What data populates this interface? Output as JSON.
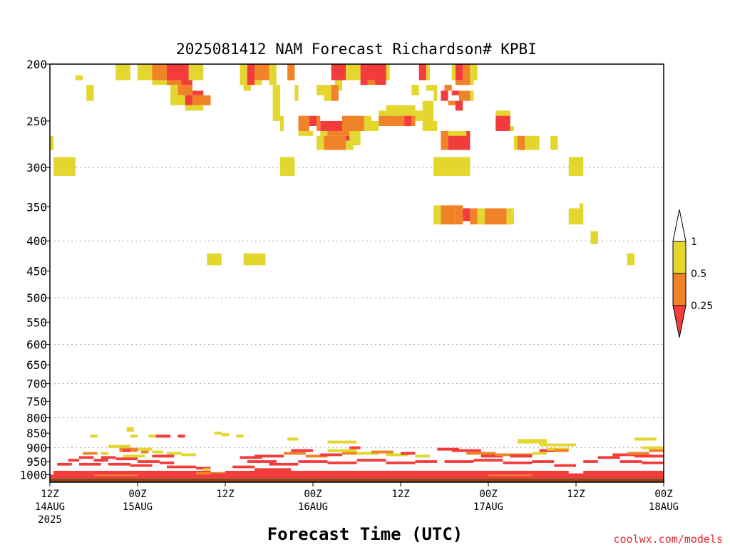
{
  "chart_data": {
    "type": "heatmap",
    "title": "2025081412 NAM Forecast Richardson# KPBI",
    "xlabel": "Forecast Time (UTC)",
    "credit": "coolwx.com/models",
    "x_unit": "forecast hours from 2025-08-14 12Z",
    "xlim": [
      0,
      84
    ],
    "ylim_hpa": [
      1030,
      200
    ],
    "y_scale": "log-pressure",
    "y_ticks": [
      200,
      250,
      300,
      350,
      400,
      450,
      500,
      550,
      600,
      650,
      700,
      750,
      800,
      850,
      900,
      950,
      1000
    ],
    "y_tick_labels": [
      "200",
      "250",
      "300",
      "350",
      "400",
      "450",
      "500",
      "550",
      "600",
      "650",
      "700",
      "750",
      "800",
      "850",
      "900",
      "950",
      "1000"
    ],
    "y_gridlines": [
      300,
      400,
      500,
      600,
      700,
      800,
      900
    ],
    "x_ticks": [
      {
        "hour": 0,
        "line1": "12Z",
        "line2": "14AUG",
        "line3": "2025"
      },
      {
        "hour": 12,
        "line1": "00Z",
        "line2": "15AUG",
        "line3": ""
      },
      {
        "hour": 24,
        "line1": "12Z",
        "line2": "",
        "line3": ""
      },
      {
        "hour": 36,
        "line1": "00Z",
        "line2": "16AUG",
        "line3": ""
      },
      {
        "hour": 48,
        "line1": "12Z",
        "line2": "",
        "line3": ""
      },
      {
        "hour": 60,
        "line1": "00Z",
        "line2": "17AUG",
        "line3": ""
      },
      {
        "hour": 72,
        "line1": "12Z",
        "line2": "",
        "line3": ""
      },
      {
        "hour": 84,
        "line1": "00Z",
        "line2": "18AUG",
        "line3": ""
      }
    ],
    "colorbar": {
      "levels": [
        "1",
        "0.5",
        "0.25"
      ],
      "colors": {
        "above_1": "#ffffff",
        "c05_1": "#e3d62e",
        "c025_05": "#f08228",
        "below_025": "#f23c3c"
      },
      "placement": "right"
    },
    "colors": {
      "yellow": "#e3d62e",
      "orange": "#f08228",
      "red": "#f23c3c",
      "ground": "#8b4513",
      "grid": "#aaaaaa"
    },
    "cells": [
      [
        "y",
        9,
        11,
        200,
        213
      ],
      [
        "y",
        12,
        14,
        200,
        213
      ],
      [
        "o",
        14,
        16,
        200,
        213
      ],
      [
        "r",
        16,
        19,
        200,
        213
      ],
      [
        "y",
        19,
        21,
        200,
        213
      ],
      [
        "y",
        26,
        27,
        200,
        213
      ],
      [
        "r",
        27,
        28,
        200,
        213
      ],
      [
        "o",
        28,
        30,
        200,
        213
      ],
      [
        "y",
        30,
        31,
        200,
        213
      ],
      [
        "o",
        32.5,
        33.5,
        200,
        213
      ],
      [
        "r",
        38.5,
        40.5,
        200,
        213
      ],
      [
        "y",
        40.5,
        42.5,
        200,
        213
      ],
      [
        "r",
        42.5,
        46,
        200,
        213
      ],
      [
        "y",
        46,
        46.5,
        200,
        213
      ],
      [
        "r",
        50.5,
        51.5,
        200,
        213
      ],
      [
        "y",
        51.5,
        52,
        200,
        213
      ],
      [
        "y",
        55,
        55.5,
        200,
        213
      ],
      [
        "r",
        55.5,
        56.5,
        200,
        213
      ],
      [
        "o",
        56.5,
        57.5,
        200,
        213
      ],
      [
        "y",
        57.5,
        58.5,
        200,
        213
      ],
      [
        "y",
        3.5,
        4.5,
        209,
        213
      ],
      [
        "y",
        14,
        16,
        213,
        217
      ],
      [
        "o",
        16,
        18,
        213,
        217
      ],
      [
        "r",
        18,
        19.5,
        213,
        217
      ],
      [
        "y",
        26,
        27,
        213,
        217
      ],
      [
        "r",
        27,
        28,
        213,
        217
      ],
      [
        "y",
        28,
        29,
        213,
        217
      ],
      [
        "y",
        30,
        31,
        213,
        217
      ],
      [
        "y",
        39,
        40,
        213,
        217
      ],
      [
        "r",
        42.5,
        43.5,
        213,
        217
      ],
      [
        "o",
        43.5,
        44.5,
        213,
        217
      ],
      [
        "r",
        44.5,
        46,
        213,
        217
      ],
      [
        "o",
        55.5,
        57.5,
        213,
        217
      ],
      [
        "y",
        57.5,
        58,
        213,
        217
      ],
      [
        "y",
        5,
        6,
        217,
        231
      ],
      [
        "y",
        16.5,
        17.5,
        217,
        231
      ],
      [
        "o",
        17.5,
        19.5,
        217,
        226
      ],
      [
        "r",
        19.5,
        21,
        222,
        226
      ],
      [
        "o",
        19.5,
        22,
        226,
        235
      ],
      [
        "r",
        18.5,
        19.5,
        226,
        235
      ],
      [
        "y",
        16.5,
        18.5,
        226,
        235
      ],
      [
        "y",
        26.5,
        27.5,
        217,
        222
      ],
      [
        "y",
        30.5,
        31.5,
        217,
        231
      ],
      [
        "y",
        33.5,
        34,
        217,
        231
      ],
      [
        "y",
        36.5,
        37.5,
        217,
        226
      ],
      [
        "y",
        37.5,
        38.5,
        217,
        231
      ],
      [
        "o",
        38.5,
        39.5,
        217,
        231
      ],
      [
        "y",
        39.5,
        40,
        217,
        222
      ],
      [
        "y",
        49.5,
        50.5,
        217,
        226
      ],
      [
        "y",
        51.5,
        52.5,
        217,
        222
      ],
      [
        "y",
        52.5,
        53,
        217,
        231
      ],
      [
        "o",
        54,
        55,
        217,
        222
      ],
      [
        "r",
        53.5,
        54.5,
        222,
        231
      ],
      [
        "r",
        55,
        56,
        222,
        226
      ],
      [
        "o",
        56,
        57.5,
        222,
        231
      ],
      [
        "y",
        57.5,
        58,
        222,
        231
      ],
      [
        "o",
        54.5,
        56.5,
        231,
        235
      ],
      [
        "r",
        55.5,
        56.5,
        231,
        240
      ],
      [
        "y",
        18.5,
        21,
        235,
        240
      ],
      [
        "y",
        30.5,
        31.5,
        231,
        250
      ],
      [
        "y",
        31.5,
        32,
        245,
        260
      ],
      [
        "y",
        46,
        50,
        235,
        245
      ],
      [
        "y",
        45,
        46,
        240,
        250
      ],
      [
        "y",
        50,
        51,
        240,
        250
      ],
      [
        "y",
        51,
        52.5,
        231,
        260
      ],
      [
        "y",
        52.5,
        53,
        250,
        260
      ],
      [
        "y",
        61,
        63,
        240,
        245
      ],
      [
        "o",
        34,
        35.5,
        245,
        260
      ],
      [
        "r",
        35.5,
        36.5,
        245,
        255
      ],
      [
        "o",
        36.5,
        37,
        245,
        260
      ],
      [
        "r",
        37,
        40,
        250,
        260
      ],
      [
        "o",
        40,
        43,
        245,
        260
      ],
      [
        "y",
        43,
        44,
        245,
        260
      ],
      [
        "y",
        44,
        45,
        250,
        260
      ],
      [
        "o",
        45,
        48.5,
        245,
        255
      ],
      [
        "r",
        48.5,
        49.5,
        245,
        255
      ],
      [
        "o",
        49.5,
        50,
        245,
        255
      ],
      [
        "y",
        34,
        36,
        260,
        265
      ],
      [
        "y",
        37,
        38,
        260,
        265
      ],
      [
        "o",
        38,
        41,
        260,
        265
      ],
      [
        "y",
        41,
        42.5,
        260,
        265
      ],
      [
        "r",
        61,
        63,
        245,
        260
      ],
      [
        "y",
        63,
        63.5,
        255,
        260
      ],
      [
        "y",
        36.5,
        37.5,
        265,
        280
      ],
      [
        "o",
        37.5,
        40.5,
        265,
        280
      ],
      [
        "y",
        40.5,
        41.5,
        265,
        280
      ],
      [
        "r",
        40.5,
        41,
        265,
        270
      ],
      [
        "y",
        41.5,
        42.5,
        265,
        275
      ],
      [
        "o",
        53.5,
        54.5,
        260,
        280
      ],
      [
        "r",
        54.5,
        57.5,
        260,
        280
      ],
      [
        "y",
        54.5,
        57,
        260,
        265
      ],
      [
        "y",
        0,
        0.5,
        265,
        280
      ],
      [
        "y",
        63.5,
        64.5,
        265,
        280
      ],
      [
        "o",
        64,
        65,
        265,
        280
      ],
      [
        "y",
        65,
        67,
        265,
        280
      ],
      [
        "y",
        68.5,
        69.5,
        265,
        280
      ],
      [
        "y",
        0.5,
        3.5,
        288,
        310
      ],
      [
        "y",
        31.5,
        33.5,
        288,
        310
      ],
      [
        "y",
        52.5,
        57.5,
        288,
        310
      ],
      [
        "y",
        71,
        73,
        288,
        310
      ],
      [
        "y",
        52.5,
        53.5,
        348,
        375
      ],
      [
        "o",
        53.5,
        55.5,
        348,
        375
      ],
      [
        "o",
        55.5,
        56.5,
        348,
        375
      ],
      [
        "r",
        56.5,
        57.5,
        352,
        370
      ],
      [
        "o",
        57.5,
        58.5,
        352,
        375
      ],
      [
        "y",
        58.5,
        59.5,
        352,
        375
      ],
      [
        "o",
        59.5,
        62.5,
        352,
        375
      ],
      [
        "y",
        62.5,
        63.5,
        352,
        375
      ],
      [
        "y",
        71,
        73,
        352,
        375
      ],
      [
        "y",
        72.5,
        73,
        345,
        352
      ],
      [
        "y",
        74,
        75,
        385,
        405
      ],
      [
        "y",
        21.5,
        23.5,
        420,
        440
      ],
      [
        "y",
        26.5,
        29.5,
        420,
        440
      ],
      [
        "y",
        79,
        80,
        420,
        440
      ],
      [
        "y",
        5.5,
        6.5,
        855,
        865
      ],
      [
        "y",
        10.5,
        11.5,
        830,
        845
      ],
      [
        "y",
        11,
        12,
        855,
        865
      ],
      [
        "y",
        13.5,
        14.5,
        855,
        865
      ],
      [
        "r",
        14.5,
        16.5,
        855,
        865
      ],
      [
        "r",
        17.5,
        18.5,
        855,
        865
      ],
      [
        "y",
        22.5,
        23.5,
        845,
        855
      ],
      [
        "y",
        23.5,
        24.5,
        850,
        860
      ],
      [
        "y",
        25.5,
        26.5,
        855,
        865
      ],
      [
        "y",
        32.5,
        34,
        865,
        875
      ],
      [
        "y",
        38,
        42,
        875,
        885
      ],
      [
        "y",
        64,
        68,
        870,
        885
      ],
      [
        "y",
        67,
        72,
        885,
        895
      ],
      [
        "y",
        80,
        83,
        865,
        875
      ],
      [
        "y",
        8,
        11,
        890,
        900
      ],
      [
        "o",
        9.5,
        12,
        900,
        915
      ],
      [
        "r",
        10,
        11,
        905,
        915
      ],
      [
        "y",
        12,
        14,
        900,
        910
      ],
      [
        "o",
        12.5,
        13.5,
        910,
        920
      ],
      [
        "y",
        14,
        15.5,
        910,
        920
      ],
      [
        "y",
        16,
        18,
        915,
        925
      ],
      [
        "y",
        18,
        20,
        920,
        930
      ],
      [
        "y",
        7,
        8,
        915,
        925
      ],
      [
        "y",
        10,
        13,
        925,
        935
      ],
      [
        "o",
        4.5,
        6.5,
        915,
        925
      ],
      [
        "r",
        4,
        6,
        930,
        940
      ],
      [
        "r",
        7,
        9,
        930,
        940
      ],
      [
        "r",
        2.5,
        4,
        940,
        950
      ],
      [
        "r",
        6,
        8,
        940,
        950
      ],
      [
        "r",
        9,
        12,
        935,
        945
      ],
      [
        "r",
        14,
        17,
        925,
        935
      ],
      [
        "r",
        12,
        15,
        945,
        955
      ],
      [
        "r",
        1,
        3,
        955,
        965
      ],
      [
        "r",
        4,
        7,
        955,
        965
      ],
      [
        "r",
        8,
        11,
        955,
        965
      ],
      [
        "r",
        11,
        14,
        960,
        970
      ],
      [
        "r",
        15,
        17,
        950,
        960
      ],
      [
        "r",
        16,
        20,
        965,
        975
      ],
      [
        "r",
        20,
        22,
        970,
        980
      ],
      [
        "y",
        21,
        22,
        975,
        985
      ],
      [
        "r",
        26,
        29,
        930,
        940
      ],
      [
        "r",
        28,
        32,
        925,
        935
      ],
      [
        "o",
        32,
        35,
        915,
        925
      ],
      [
        "r",
        33,
        36,
        905,
        915
      ],
      [
        "o",
        35,
        38,
        925,
        935
      ],
      [
        "r",
        37,
        40,
        920,
        930
      ],
      [
        "y",
        38,
        42,
        905,
        915
      ],
      [
        "o",
        40,
        43,
        915,
        925
      ],
      [
        "r",
        41,
        42.5,
        895,
        905
      ],
      [
        "y",
        42,
        45,
        915,
        925
      ],
      [
        "o",
        44,
        47,
        910,
        920
      ],
      [
        "y",
        46,
        49,
        920,
        930
      ],
      [
        "r",
        48,
        50,
        915,
        925
      ],
      [
        "y",
        50,
        52,
        925,
        935
      ],
      [
        "r",
        27,
        31,
        945,
        955
      ],
      [
        "r",
        30,
        34,
        955,
        965
      ],
      [
        "r",
        34,
        38,
        945,
        955
      ],
      [
        "r",
        38,
        42,
        950,
        960
      ],
      [
        "r",
        42,
        46,
        940,
        950
      ],
      [
        "r",
        46,
        50,
        950,
        960
      ],
      [
        "r",
        50,
        53,
        945,
        955
      ],
      [
        "r",
        25,
        28,
        965,
        975
      ],
      [
        "r",
        28,
        33,
        975,
        985
      ],
      [
        "r",
        53,
        56,
        900,
        910
      ],
      [
        "r",
        55,
        59,
        905,
        915
      ],
      [
        "o",
        57,
        61,
        915,
        925
      ],
      [
        "r",
        59,
        62,
        925,
        935
      ],
      [
        "o",
        61,
        66,
        920,
        930
      ],
      [
        "r",
        63,
        66,
        925,
        935
      ],
      [
        "y",
        66,
        68,
        915,
        925
      ],
      [
        "r",
        67,
        70,
        905,
        915
      ],
      [
        "y",
        68,
        71,
        900,
        910
      ],
      [
        "o",
        69,
        71,
        905,
        915
      ],
      [
        "r",
        54,
        58,
        945,
        955
      ],
      [
        "r",
        58,
        62,
        940,
        950
      ],
      [
        "r",
        62,
        66,
        950,
        960
      ],
      [
        "r",
        66,
        69,
        945,
        955
      ],
      [
        "r",
        69,
        72,
        960,
        970
      ],
      [
        "r",
        73,
        75,
        945,
        955
      ],
      [
        "r",
        75,
        78,
        930,
        940
      ],
      [
        "r",
        77,
        80,
        920,
        930
      ],
      [
        "o",
        79,
        82,
        915,
        925
      ],
      [
        "r",
        80,
        84,
        925,
        935
      ],
      [
        "o",
        82,
        84,
        905,
        915
      ],
      [
        "y",
        81,
        84,
        895,
        905
      ],
      [
        "r",
        78,
        81,
        945,
        955
      ],
      [
        "r",
        81,
        84,
        950,
        960
      ],
      [
        "r",
        0.5,
        22,
        985,
        1000
      ],
      [
        "r",
        24,
        71,
        985,
        1000
      ],
      [
        "r",
        73,
        84,
        985,
        1000
      ],
      [
        "r",
        0,
        84,
        1000,
        1015
      ],
      [
        "o",
        6,
        12,
        1000,
        1005
      ],
      [
        "o",
        20,
        24,
        990,
        1000
      ],
      [
        "o",
        60,
        66,
        1000,
        1005
      ],
      [
        "r",
        22,
        24,
        995,
        1005
      ],
      [
        "r",
        71,
        73,
        995,
        1005
      ]
    ]
  }
}
